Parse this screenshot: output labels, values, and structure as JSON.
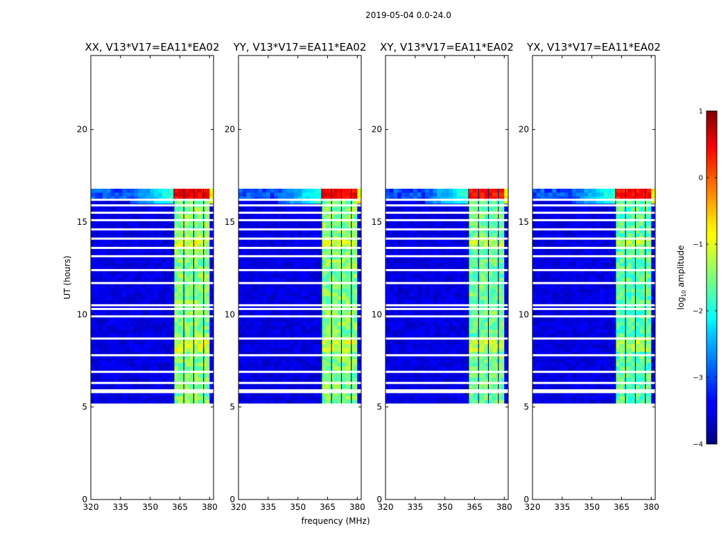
{
  "chart_data": {
    "type": "heatmap",
    "title": "2019-05-04 0.0-24.0",
    "xlabel": "frequency (MHz)",
    "ylabel": "UT (hours)",
    "xlim": [
      320,
      382
    ],
    "ylim": [
      0,
      24
    ],
    "xticks": [
      320,
      335,
      350,
      365,
      380
    ],
    "xtick_labels": [
      "320",
      "335",
      "350",
      "365",
      "380"
    ],
    "yticks": [
      0,
      5,
      10,
      15,
      20
    ],
    "ytick_labels": [
      "0",
      "5",
      "10",
      "15",
      "20"
    ],
    "panels": [
      {
        "title": "XX, V13*V17=EA11*EA02",
        "band_level": -1.5,
        "hot_level": 0.4
      },
      {
        "title": "YY, V13*V17=EA11*EA02",
        "band_level": -1.5,
        "hot_level": 0.4
      },
      {
        "title": "XY, V13*V17=EA11*EA02",
        "band_level": -1.6,
        "hot_level": 0.3
      },
      {
        "title": "YX, V13*V17=EA11*EA02",
        "band_level": -1.7,
        "hot_level": 0.3
      }
    ],
    "data_extent_hours": [
      5.2,
      16.8
    ],
    "bright_band_mhz": [
      362,
      380
    ],
    "bright_channels_mhz": [
      362,
      367,
      372,
      377
    ],
    "gap_hours": [
      5.9,
      6.3,
      6.9,
      7.8,
      8.7,
      9.9,
      10.3,
      10.5,
      11.7,
      12.4,
      13.15,
      13.6,
      14.1,
      14.6,
      15.1,
      15.5,
      15.9,
      16.2
    ],
    "colorbar": {
      "label": "log10 amplitude",
      "label_text": "log",
      "label_sub": "10",
      "label_rest": " amplitude",
      "range": [
        -4,
        1
      ],
      "ticks": [
        -4,
        -3,
        -2,
        -1,
        0,
        1
      ],
      "tick_labels": [
        "−4",
        "−3",
        "−2",
        "−1",
        "0",
        "1"
      ],
      "colormap": "jet"
    }
  }
}
